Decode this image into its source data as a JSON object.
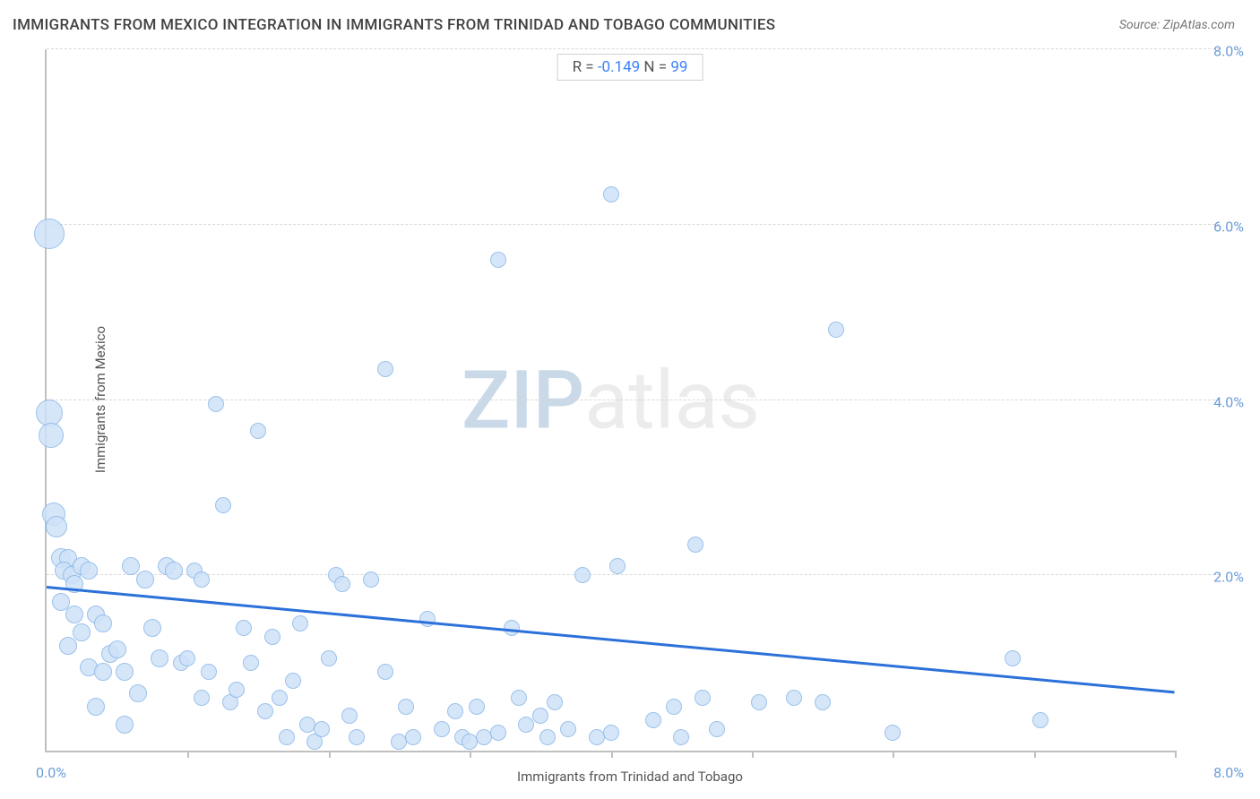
{
  "title": "IMMIGRANTS FROM MEXICO INTEGRATION IN IMMIGRANTS FROM TRINIDAD AND TOBAGO COMMUNITIES",
  "source_label": "Source: ",
  "source_name": "ZipAtlas.com",
  "stats": {
    "r_label": "R = ",
    "r_value": "-0.149",
    "n_label": "   N = ",
    "n_value": "99"
  },
  "axes": {
    "x_title": "Immigrants from Trinidad and Tobago",
    "y_title": "Immigrants from Mexico",
    "x_min": 0.0,
    "x_max": 8.0,
    "y_min": 0.0,
    "y_max": 8.0,
    "x_min_label": "0.0%",
    "x_max_label": "8.0%",
    "y_tick_labels": [
      "2.0%",
      "4.0%",
      "6.0%",
      "8.0%"
    ],
    "y_tick_values": [
      2.0,
      4.0,
      6.0,
      8.0
    ],
    "x_tick_values": [
      1.0,
      2.0,
      3.0,
      4.0,
      5.0,
      6.0,
      7.0,
      8.0
    ]
  },
  "style": {
    "point_fill": "#cfe2f8",
    "point_stroke": "#8bb7e8",
    "point_opacity": 0.85,
    "trend_color": "#2b71d9",
    "background": "#ffffff",
    "grid_color": "#d8d8d8",
    "axis_color": "#c0c0c0",
    "axis_label_color": "#6b9bd8"
  },
  "trend_line": {
    "x1": 0.0,
    "y1": 1.85,
    "x2": 8.0,
    "y2": 0.65
  },
  "watermark": {
    "part1": "ZIP",
    "part2": "atlas"
  },
  "points": [
    {
      "x": 0.02,
      "y": 5.9,
      "r": 17
    },
    {
      "x": 0.02,
      "y": 3.85,
      "r": 15
    },
    {
      "x": 0.03,
      "y": 3.6,
      "r": 14
    },
    {
      "x": 0.05,
      "y": 2.7,
      "r": 13
    },
    {
      "x": 0.07,
      "y": 2.55,
      "r": 12
    },
    {
      "x": 0.1,
      "y": 2.2,
      "r": 11
    },
    {
      "x": 0.15,
      "y": 2.2,
      "r": 10
    },
    {
      "x": 0.12,
      "y": 2.05,
      "r": 10
    },
    {
      "x": 0.18,
      "y": 2.0,
      "r": 10
    },
    {
      "x": 0.25,
      "y": 2.1,
      "r": 10
    },
    {
      "x": 0.2,
      "y": 1.9,
      "r": 10
    },
    {
      "x": 0.3,
      "y": 2.05,
      "r": 10
    },
    {
      "x": 0.1,
      "y": 1.7,
      "r": 10
    },
    {
      "x": 0.2,
      "y": 1.55,
      "r": 10
    },
    {
      "x": 0.25,
      "y": 1.35,
      "r": 10
    },
    {
      "x": 0.35,
      "y": 1.55,
      "r": 10
    },
    {
      "x": 0.4,
      "y": 1.45,
      "r": 10
    },
    {
      "x": 0.45,
      "y": 1.1,
      "r": 10
    },
    {
      "x": 0.5,
      "y": 1.15,
      "r": 10
    },
    {
      "x": 0.3,
      "y": 0.95,
      "r": 10
    },
    {
      "x": 0.4,
      "y": 0.9,
      "r": 10
    },
    {
      "x": 0.55,
      "y": 0.9,
      "r": 10
    },
    {
      "x": 0.6,
      "y": 2.1,
      "r": 10
    },
    {
      "x": 0.7,
      "y": 1.95,
      "r": 10
    },
    {
      "x": 0.75,
      "y": 1.4,
      "r": 10
    },
    {
      "x": 0.8,
      "y": 1.05,
      "r": 10
    },
    {
      "x": 0.85,
      "y": 2.1,
      "r": 10
    },
    {
      "x": 0.9,
      "y": 2.05,
      "r": 10
    },
    {
      "x": 0.95,
      "y": 1.0,
      "r": 9
    },
    {
      "x": 1.0,
      "y": 1.05,
      "r": 9
    },
    {
      "x": 1.05,
      "y": 2.05,
      "r": 9
    },
    {
      "x": 1.1,
      "y": 1.95,
      "r": 9
    },
    {
      "x": 1.1,
      "y": 0.6,
      "r": 9
    },
    {
      "x": 1.15,
      "y": 0.9,
      "r": 9
    },
    {
      "x": 1.2,
      "y": 3.95,
      "r": 9
    },
    {
      "x": 1.25,
      "y": 2.8,
      "r": 9
    },
    {
      "x": 1.3,
      "y": 0.55,
      "r": 9
    },
    {
      "x": 1.35,
      "y": 0.7,
      "r": 9
    },
    {
      "x": 1.4,
      "y": 1.4,
      "r": 9
    },
    {
      "x": 1.45,
      "y": 1.0,
      "r": 9
    },
    {
      "x": 1.5,
      "y": 3.65,
      "r": 9
    },
    {
      "x": 1.55,
      "y": 0.45,
      "r": 9
    },
    {
      "x": 1.6,
      "y": 1.3,
      "r": 9
    },
    {
      "x": 1.65,
      "y": 0.6,
      "r": 9
    },
    {
      "x": 1.7,
      "y": 0.15,
      "r": 9
    },
    {
      "x": 1.75,
      "y": 0.8,
      "r": 9
    },
    {
      "x": 1.8,
      "y": 1.45,
      "r": 9
    },
    {
      "x": 1.85,
      "y": 0.3,
      "r": 9
    },
    {
      "x": 1.9,
      "y": 0.1,
      "r": 9
    },
    {
      "x": 1.95,
      "y": 0.25,
      "r": 9
    },
    {
      "x": 2.0,
      "y": 1.05,
      "r": 9
    },
    {
      "x": 2.05,
      "y": 2.0,
      "r": 9
    },
    {
      "x": 2.1,
      "y": 1.9,
      "r": 9
    },
    {
      "x": 2.15,
      "y": 0.4,
      "r": 9
    },
    {
      "x": 2.2,
      "y": 0.15,
      "r": 9
    },
    {
      "x": 2.3,
      "y": 1.95,
      "r": 9
    },
    {
      "x": 2.4,
      "y": 4.35,
      "r": 9
    },
    {
      "x": 2.4,
      "y": 0.9,
      "r": 9
    },
    {
      "x": 2.5,
      "y": 0.1,
      "r": 9
    },
    {
      "x": 2.55,
      "y": 0.5,
      "r": 9
    },
    {
      "x": 2.6,
      "y": 0.15,
      "r": 9
    },
    {
      "x": 2.7,
      "y": 1.5,
      "r": 9
    },
    {
      "x": 2.8,
      "y": 0.25,
      "r": 9
    },
    {
      "x": 2.9,
      "y": 0.45,
      "r": 9
    },
    {
      "x": 2.95,
      "y": 0.15,
      "r": 9
    },
    {
      "x": 3.0,
      "y": 0.1,
      "r": 9
    },
    {
      "x": 3.05,
      "y": 0.5,
      "r": 9
    },
    {
      "x": 3.1,
      "y": 0.15,
      "r": 9
    },
    {
      "x": 3.2,
      "y": 0.2,
      "r": 9
    },
    {
      "x": 3.2,
      "y": 5.6,
      "r": 9
    },
    {
      "x": 3.3,
      "y": 1.4,
      "r": 9
    },
    {
      "x": 3.35,
      "y": 0.6,
      "r": 9
    },
    {
      "x": 3.4,
      "y": 0.3,
      "r": 9
    },
    {
      "x": 3.5,
      "y": 0.4,
      "r": 9
    },
    {
      "x": 3.55,
      "y": 0.15,
      "r": 9
    },
    {
      "x": 3.6,
      "y": 0.55,
      "r": 9
    },
    {
      "x": 3.7,
      "y": 0.25,
      "r": 9
    },
    {
      "x": 3.8,
      "y": 2.0,
      "r": 9
    },
    {
      "x": 3.9,
      "y": 0.15,
      "r": 9
    },
    {
      "x": 4.0,
      "y": 6.35,
      "r": 9
    },
    {
      "x": 4.0,
      "y": 0.2,
      "r": 9
    },
    {
      "x": 4.05,
      "y": 2.1,
      "r": 9
    },
    {
      "x": 4.3,
      "y": 0.35,
      "r": 9
    },
    {
      "x": 4.45,
      "y": 0.5,
      "r": 9
    },
    {
      "x": 4.5,
      "y": 0.15,
      "r": 9
    },
    {
      "x": 4.6,
      "y": 2.35,
      "r": 9
    },
    {
      "x": 4.65,
      "y": 0.6,
      "r": 9
    },
    {
      "x": 4.75,
      "y": 0.25,
      "r": 9
    },
    {
      "x": 5.05,
      "y": 0.55,
      "r": 9
    },
    {
      "x": 5.3,
      "y": 0.6,
      "r": 9
    },
    {
      "x": 5.5,
      "y": 0.55,
      "r": 9
    },
    {
      "x": 5.6,
      "y": 4.8,
      "r": 9
    },
    {
      "x": 6.0,
      "y": 0.2,
      "r": 9
    },
    {
      "x": 6.85,
      "y": 1.05,
      "r": 9
    },
    {
      "x": 7.05,
      "y": 0.35,
      "r": 9
    },
    {
      "x": 0.55,
      "y": 0.3,
      "r": 10
    },
    {
      "x": 0.65,
      "y": 0.65,
      "r": 10
    },
    {
      "x": 0.35,
      "y": 0.5,
      "r": 10
    },
    {
      "x": 0.15,
      "y": 1.2,
      "r": 10
    }
  ]
}
